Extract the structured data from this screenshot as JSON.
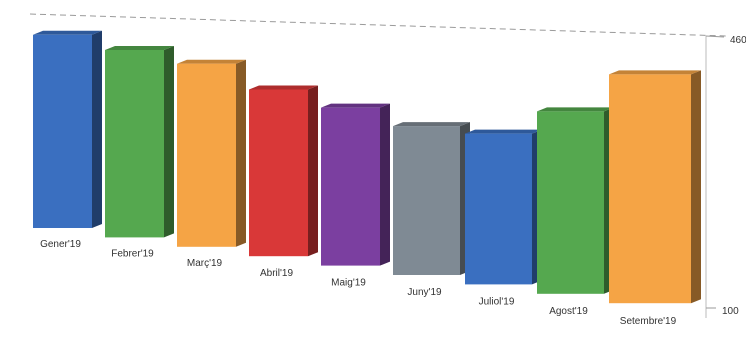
{
  "chart_data": {
    "type": "bar",
    "style": "3d-perspective",
    "categories": [
      "Gener'19",
      "Febrer'19",
      "Març'19",
      "Abril'19",
      "Maig'19",
      "Juny'19",
      "Juliol'19",
      "Agost'19",
      "Setembre'19"
    ],
    "values": [
      441,
      419,
      401,
      365,
      343,
      322,
      318,
      356,
      412
    ],
    "colors": [
      "#3a6fc0",
      "#55a84f",
      "#f5a445",
      "#d93838",
      "#7b3fa0",
      "#7f8a94",
      "#3a6fc0",
      "#55a84f",
      "#f5a445"
    ],
    "ylim": [
      100,
      460
    ],
    "yticks": [
      "460",
      "100"
    ],
    "grid": true
  }
}
